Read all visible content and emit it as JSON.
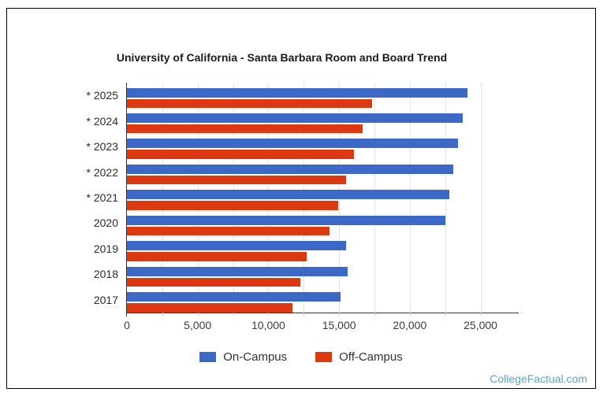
{
  "chart_data": {
    "type": "bar",
    "orientation": "horizontal",
    "title": "University of California - Santa Barbara Room and Board Trend",
    "categories": [
      "* 2025",
      "* 2024",
      "* 2023",
      "* 2022",
      "* 2021",
      "2020",
      "2019",
      "2018",
      "2017"
    ],
    "series": [
      {
        "name": "On-Campus",
        "color": "#3c69c8",
        "values": [
          24100,
          23750,
          23430,
          23100,
          22770,
          22500,
          15475,
          15580,
          15130
        ]
      },
      {
        "name": "Off-Campus",
        "color": "#dc3912",
        "values": [
          17350,
          16670,
          16040,
          15500,
          14950,
          14310,
          12705,
          12255,
          11725
        ]
      }
    ],
    "xlabel": "",
    "ylabel": "",
    "xlim": [
      0,
      27700
    ],
    "xticks": [
      {
        "value": 0,
        "label": "0"
      },
      {
        "value": 2500,
        "label": ""
      },
      {
        "value": 5000,
        "label": "5,000"
      },
      {
        "value": 7500,
        "label": ""
      },
      {
        "value": 10000,
        "label": "10,000"
      },
      {
        "value": 12500,
        "label": ""
      },
      {
        "value": 15000,
        "label": "15,000"
      },
      {
        "value": 17500,
        "label": ""
      },
      {
        "value": 20000,
        "label": "20,000"
      },
      {
        "value": 22500,
        "label": ""
      },
      {
        "value": 25000,
        "label": "25,000"
      }
    ],
    "grid": true,
    "legend_position": "bottom"
  },
  "colors": {
    "on_campus": "#3c69c8",
    "off_campus": "#dc3912",
    "axis": "#333333",
    "gridline": "#e3e3e3",
    "watermark": "#56a7c5",
    "frame_border": "#000000"
  },
  "footer": {
    "watermark": "CollegeFactual.com"
  }
}
